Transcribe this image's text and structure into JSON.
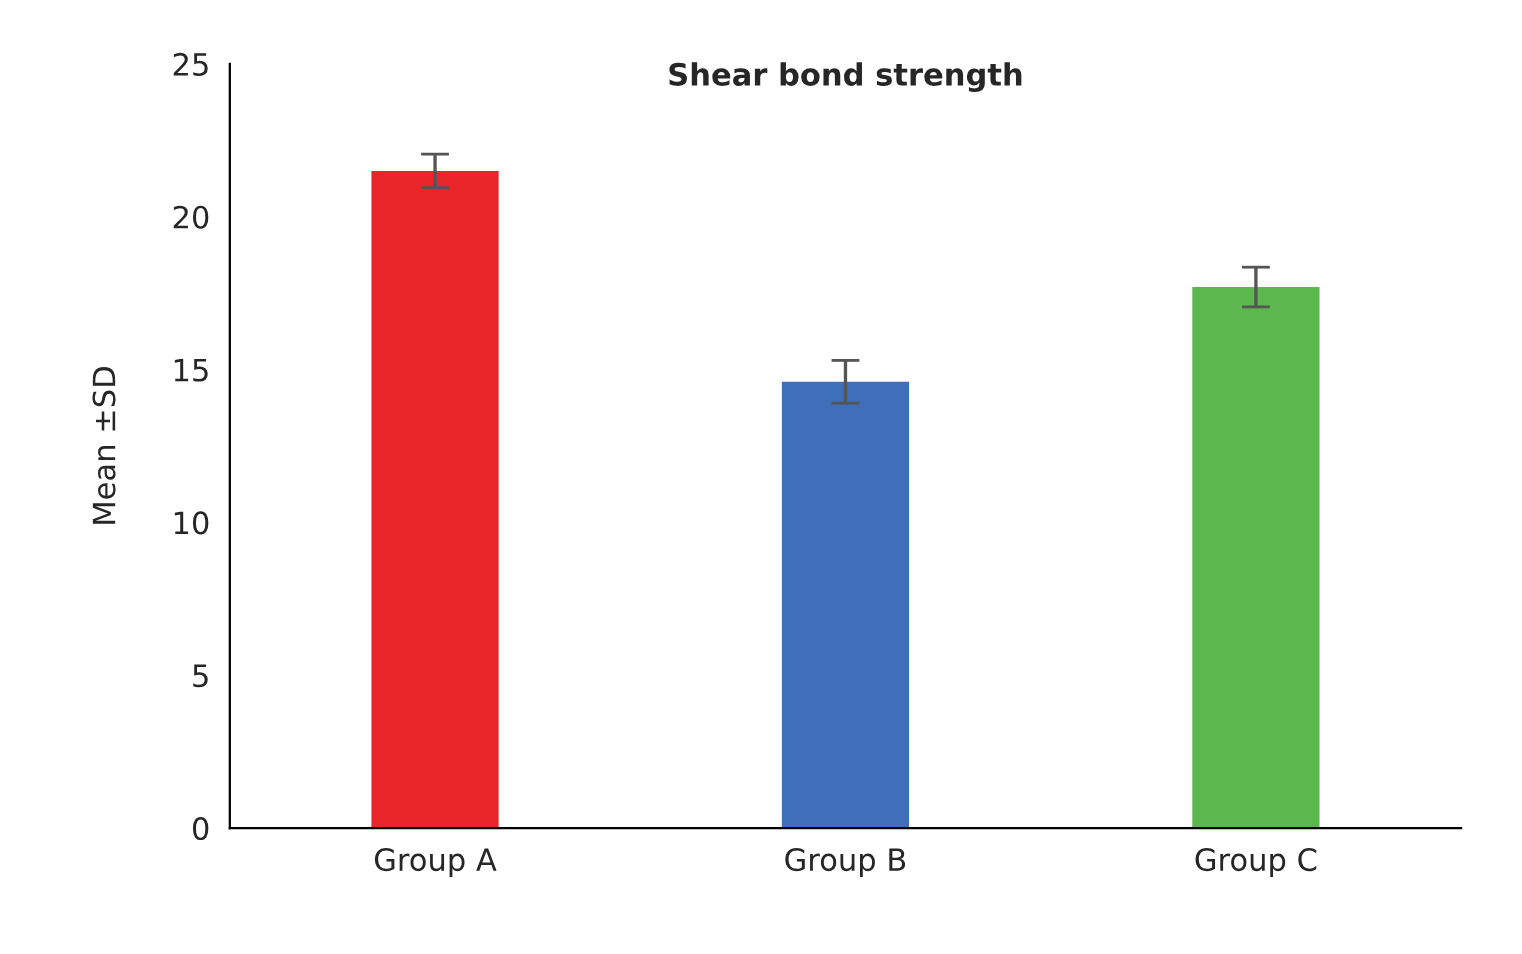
{
  "chart_data": {
    "type": "bar",
    "title": "Shear bond strength",
    "ylabel": "Mean ±SD",
    "categories": [
      "Group A",
      "Group B",
      "Group C"
    ],
    "values": [
      21.5,
      14.6,
      17.7
    ],
    "errors": [
      0.55,
      0.7,
      0.65
    ],
    "colors": [
      "#e8262a",
      "#3f6fb8",
      "#5db74f"
    ],
    "ylim": [
      0,
      25
    ],
    "yticks": [
      0,
      5,
      10,
      15,
      20,
      25
    ],
    "grid": false
  }
}
